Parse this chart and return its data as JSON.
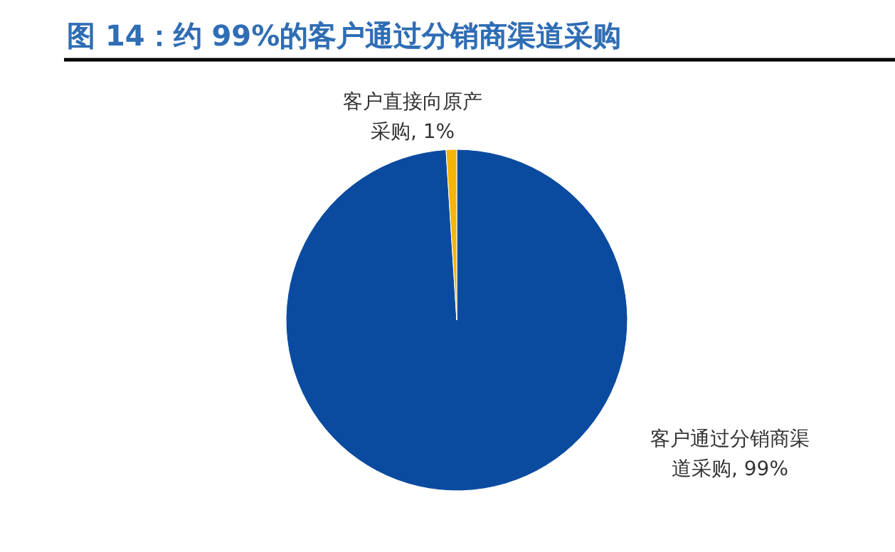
{
  "chart_data": {
    "type": "pie",
    "title": "图 14：约 99%的客户通过分销商渠道采购",
    "categories": [
      "客户通过分销商渠道采购, 99%",
      "客户直接向原产采购, 1%"
    ],
    "values": [
      99,
      1
    ],
    "colors": [
      "#0a4ba0",
      "#f5b40a"
    ]
  }
}
